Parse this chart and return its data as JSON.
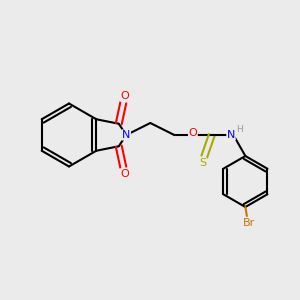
{
  "bg_color": "#ebebeb",
  "bond_color": "#000000",
  "bond_width": 1.5,
  "atom_colors": {
    "N": "#0000ff",
    "O": "#ff0000",
    "S": "#aaaa00",
    "Br": "#cc7700",
    "H": "#999999",
    "C": "#000000"
  },
  "font_size_atom": 8,
  "font_size_small": 6.5
}
